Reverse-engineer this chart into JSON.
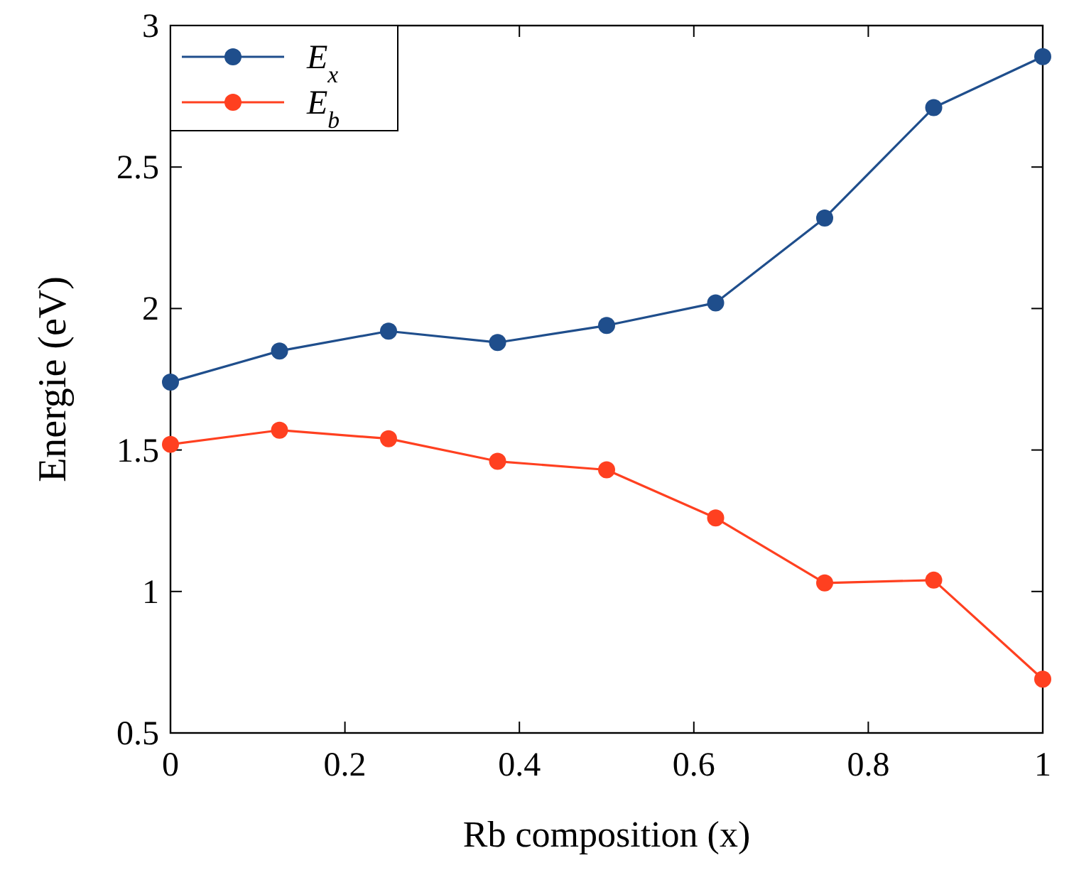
{
  "chart_data": {
    "type": "line",
    "xlabel": "Rb composition (x)",
    "ylabel": "Energie (eV)",
    "x": [
      0,
      0.125,
      0.25,
      0.375,
      0.5,
      0.625,
      0.75,
      0.875,
      1
    ],
    "series": [
      {
        "name": "E$_{x}$",
        "color": "#1f4e8c",
        "values": [
          1.74,
          1.85,
          1.92,
          1.88,
          1.94,
          2.02,
          2.32,
          2.71,
          2.89
        ]
      },
      {
        "name": "E$_{b}$",
        "color": "#ff4020",
        "values": [
          1.52,
          1.57,
          1.54,
          1.46,
          1.43,
          1.26,
          1.03,
          1.04,
          0.69
        ]
      }
    ],
    "xlim": [
      0,
      1
    ],
    "xticks": [
      0,
      0.2,
      0.4,
      0.6,
      0.8,
      1
    ],
    "ylim": [
      0.5,
      3
    ],
    "yticks": [
      0.5,
      1,
      1.5,
      2,
      2.5,
      3
    ],
    "legend": "top left",
    "marker": "circle",
    "line_style": "solid",
    "grid": false
  }
}
